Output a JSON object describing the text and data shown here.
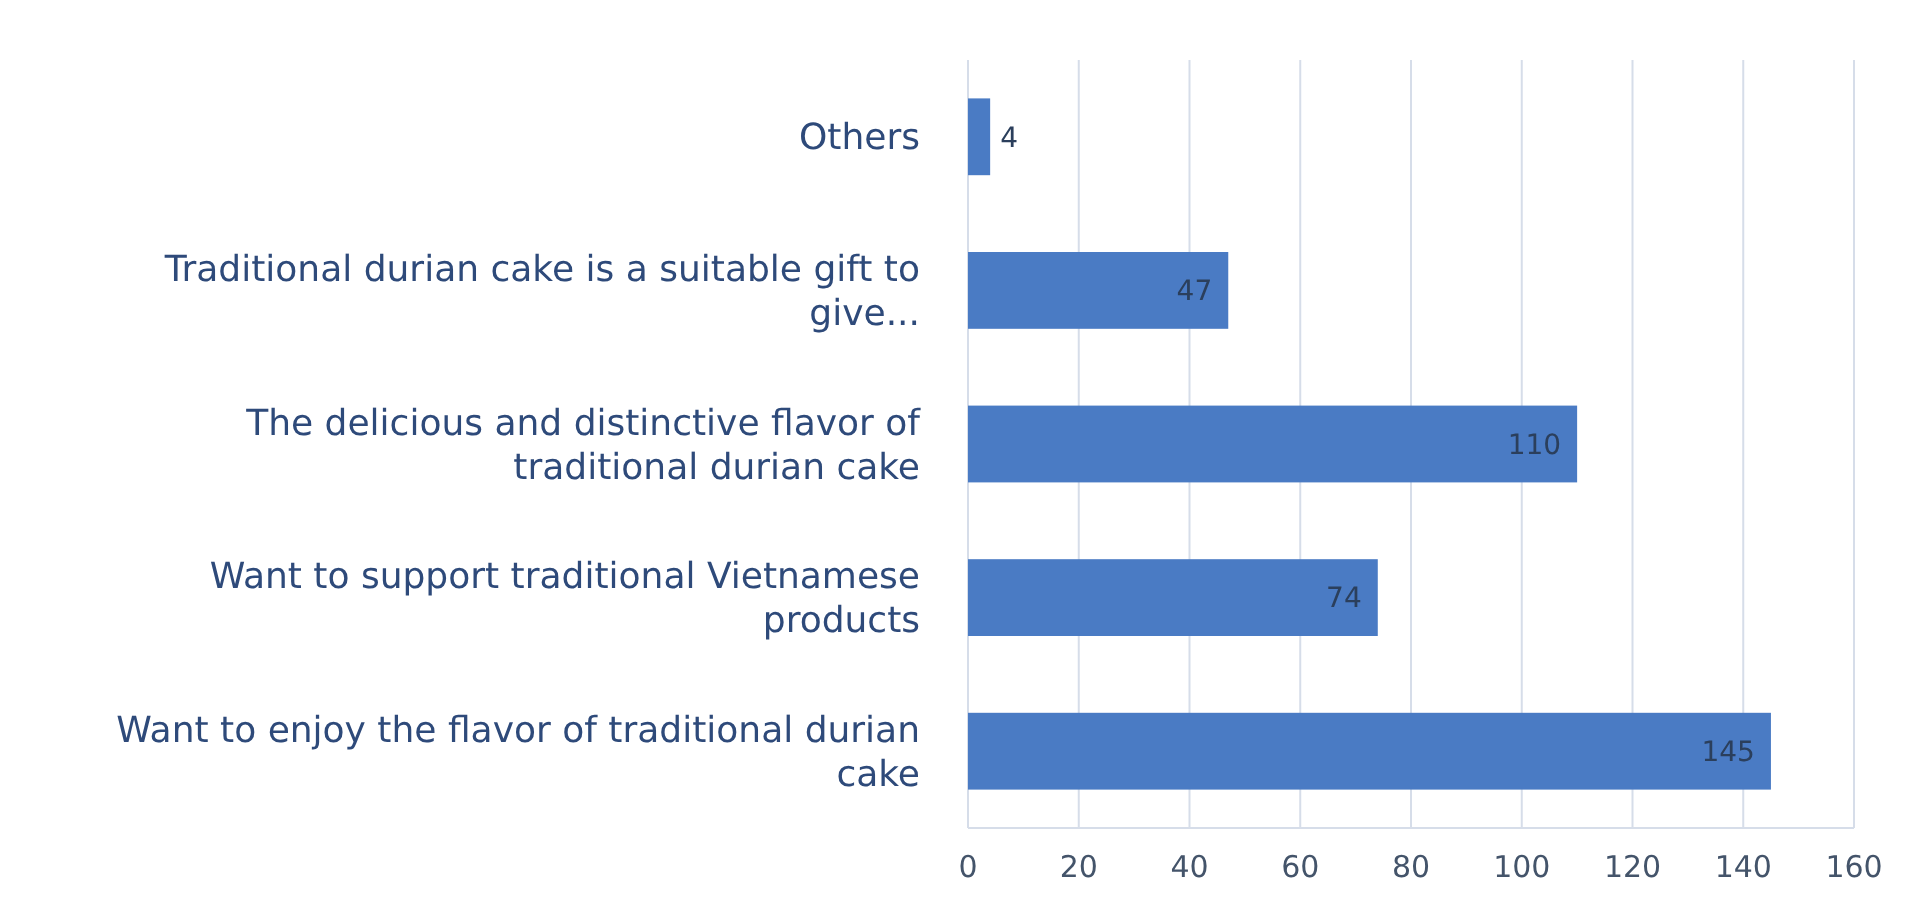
{
  "chart_data": {
    "type": "bar",
    "orientation": "horizontal",
    "categories": [
      "Others",
      "Traditional durian cake is a suitable gift to give...",
      "The delicious and distinctive flavor of traditional durian cake",
      "Want to support traditional Vietnamese products",
      "Want to enjoy the flavor of traditional durian cake"
    ],
    "values": [
      4,
      47,
      110,
      74,
      145
    ],
    "color": "#4a7bc4",
    "xlim": [
      0,
      160
    ],
    "xticks": [
      0,
      20,
      40,
      60,
      80,
      100,
      120,
      140,
      160
    ],
    "grid": "x",
    "data_labels": true
  }
}
